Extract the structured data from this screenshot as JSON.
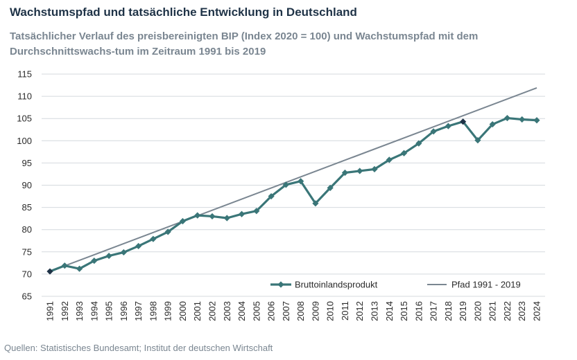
{
  "header": {
    "title": "Wachstumspfad und tatsächliche Entwicklung in Deutschland",
    "subtitle": "Tatsächlicher Verlauf des preisbereinigten BIP (Index 2020 = 100) und Wachstumspfad mit dem Durchschnittswachs-tum im Zeitraum 1991 bis 2019"
  },
  "footer": {
    "source": "Quellen: Statistisches Bundesamt; Institut der deutschen Wirtschaft"
  },
  "chart_data": {
    "type": "line",
    "x": [
      1991,
      1992,
      1993,
      1994,
      1995,
      1996,
      1997,
      1998,
      1999,
      2000,
      2001,
      2002,
      2003,
      2004,
      2005,
      2006,
      2007,
      2008,
      2009,
      2010,
      2011,
      2012,
      2013,
      2014,
      2015,
      2016,
      2017,
      2018,
      2019,
      2020,
      2021,
      2022,
      2023,
      2024
    ],
    "x_tick_labels": [
      "1991",
      "1992",
      "1993",
      "1994",
      "1995",
      "1996",
      "1997",
      "1998",
      "1999",
      "2000",
      "2001",
      "2002",
      "2003",
      "2004",
      "2005",
      "2006",
      "2007",
      "2008",
      "2009",
      "2010",
      "2011",
      "2012",
      "2013",
      "2014",
      "2015",
      "2016",
      "2017",
      "2018",
      "2019",
      "2020",
      "2021",
      "2022",
      "2023",
      "2024"
    ],
    "ylim": [
      65,
      115
    ],
    "y_ticks": [
      65,
      70,
      75,
      80,
      85,
      90,
      95,
      100,
      105,
      110,
      115
    ],
    "grid": true,
    "legend_position": "bottom-right",
    "series": [
      {
        "name": "Bruttoinlandsprodukt",
        "color": "#3a7678",
        "marker": "diamond",
        "highlight_points": [
          1991,
          2019
        ],
        "highlight_color": "#1f3347",
        "values": [
          70.6,
          71.9,
          71.2,
          73.0,
          74.1,
          74.9,
          76.3,
          77.9,
          79.5,
          81.9,
          83.2,
          83.0,
          82.6,
          83.5,
          84.2,
          87.5,
          90.1,
          90.9,
          85.9,
          89.4,
          92.8,
          93.2,
          93.6,
          95.7,
          97.2,
          99.4,
          102.1,
          103.3,
          104.3,
          100.1,
          103.7,
          105.1,
          104.8,
          104.6
        ]
      },
      {
        "name": "Pfad 1991 - 2019",
        "color": "#7a8691",
        "x": [
          1991,
          2024
        ],
        "values": [
          70.6,
          111.9
        ]
      }
    ]
  }
}
